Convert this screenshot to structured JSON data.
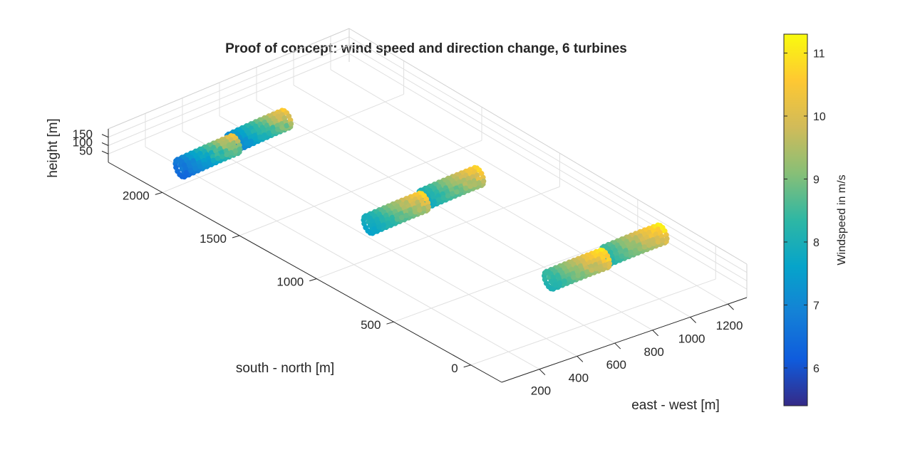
{
  "chart_data": {
    "type": "scatter3d",
    "title": "Proof of concept: wind speed and direction change, 6 turbines",
    "xlabel": "east - west [m]",
    "ylabel": "south - north [m]",
    "zlabel": "height [m]",
    "xlim": [
      0,
      1300
    ],
    "ylim": [
      -200,
      2350
    ],
    "zlim": [
      0,
      200
    ],
    "xticks": [
      200,
      400,
      600,
      800,
      1000,
      1200
    ],
    "yticks": [
      0,
      500,
      1000,
      1500,
      2000
    ],
    "zticks": [
      50,
      100,
      150
    ],
    "grid": true,
    "colormap": "parula",
    "colorbar": {
      "label": "Windspeed in m/s",
      "limits": [
        5.4,
        11.3
      ],
      "ticks": [
        6,
        7,
        8,
        9,
        10,
        11
      ],
      "placement": "right"
    },
    "turbines": [
      {
        "x": 100,
        "y": 2000,
        "speed_range": [
          5.6,
          10.4
        ]
      },
      {
        "x": 400,
        "y": 2030,
        "speed_range": [
          6.0,
          10.6
        ]
      },
      {
        "x": 380,
        "y": 1120,
        "speed_range": [
          7.0,
          10.8
        ]
      },
      {
        "x": 700,
        "y": 1150,
        "speed_range": [
          7.2,
          10.8
        ]
      },
      {
        "x": 650,
        "y": 280,
        "speed_range": [
          7.5,
          11.2
        ]
      },
      {
        "x": 980,
        "y": 310,
        "speed_range": [
          7.6,
          11.2
        ]
      }
    ]
  }
}
